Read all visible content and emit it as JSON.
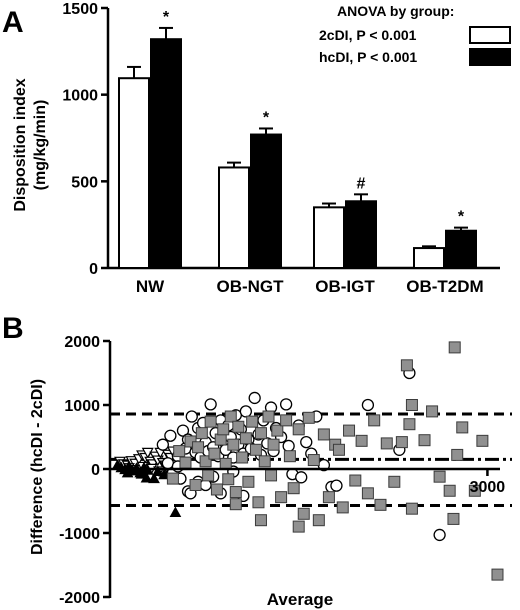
{
  "panels": [
    {
      "panel_label": "A",
      "chart_data": {
        "type": "bar",
        "ylabel_line1": "Disposition index",
        "ylabel_line2": "(mg/kg/min)",
        "xlabel": "",
        "ylim": [
          0,
          1500
        ],
        "yticks": [
          0,
          500,
          1000,
          1500
        ],
        "categories": [
          "NW",
          "OB-NGT",
          "OB-IGT",
          "OB-T2DM"
        ],
        "series": [
          {
            "name": "2cDI, P < 0.001",
            "color": "#ffffff",
            "values": [
              1095,
              580,
              350,
              115
            ],
            "errors": [
              65,
              28,
              22,
              10
            ]
          },
          {
            "name": "hcDI, P < 0.001",
            "color": "#000000",
            "values": [
              1320,
              770,
              385,
              215
            ],
            "errors": [
              65,
              35,
              40,
              18
            ]
          }
        ],
        "significance_marks": [
          "*",
          "*",
          "#",
          "*"
        ],
        "legend_title": "ANOVA by group:",
        "legend_position": "top-right",
        "grid": false
      }
    },
    {
      "panel_label": "B",
      "chart_data": {
        "type": "scatter",
        "title": "",
        "xlabel": "Average",
        "ylabel": "Difference (hcDI - 2cDI)",
        "xlim": [
          0,
          3100
        ],
        "ylim": [
          -2000,
          2000
        ],
        "xticks": [
          3000
        ],
        "yticks": [
          -2000,
          -1000,
          0,
          1000,
          2000
        ],
        "grid": false,
        "reference_lines": [
          {
            "y": 150,
            "style": "dash-dot"
          },
          {
            "y": 860,
            "style": "dashed"
          },
          {
            "y": -570,
            "style": "dashed"
          }
        ],
        "series": [
          {
            "marker": "triangle-down-open",
            "points": [
              [
                80,
                120
              ],
              [
                110,
                80
              ],
              [
                140,
                60
              ],
              [
                170,
                130
              ],
              [
                200,
                90
              ],
              [
                230,
                160
              ],
              [
                255,
                220
              ],
              [
                280,
                180
              ],
              [
                300,
                260
              ],
              [
                320,
                120
              ],
              [
                340,
                80
              ],
              [
                360,
                200
              ],
              [
                380,
                140
              ],
              [
                400,
                260
              ],
              [
                420,
                100
              ],
              [
                440,
                60
              ],
              [
                460,
                230
              ],
              [
                480,
                180
              ],
              [
                500,
                280
              ],
              [
                150,
                20
              ],
              [
                210,
                -10
              ],
              [
                260,
                40
              ],
              [
                330,
                10
              ],
              [
                390,
                -30
              ],
              [
                450,
                30
              ]
            ]
          },
          {
            "marker": "triangle-up-filled",
            "points": [
              [
                60,
                60
              ],
              [
                90,
                20
              ],
              [
                120,
                -10
              ],
              [
                150,
                40
              ],
              [
                180,
                -30
              ],
              [
                210,
                10
              ],
              [
                240,
                -60
              ],
              [
                270,
                20
              ],
              [
                300,
                -20
              ],
              [
                350,
                -150
              ],
              [
                380,
                -40
              ],
              [
                250,
                -80
              ],
              [
                140,
                -60
              ],
              [
                470,
                -50
              ],
              [
                520,
                -680
              ],
              [
                430,
                -90
              ],
              [
                290,
                -140
              ]
            ]
          },
          {
            "marker": "circle-open",
            "points": [
              [
                420,
                380
              ],
              [
                480,
                520
              ],
              [
                540,
                200
              ],
              [
                580,
                600
              ],
              [
                600,
                320
              ],
              [
                620,
                460
              ],
              [
                650,
                820
              ],
              [
                680,
                260
              ],
              [
                700,
                640
              ],
              [
                720,
                180
              ],
              [
                740,
                720
              ],
              [
                760,
                420
              ],
              [
                780,
                280
              ],
              [
                800,
                1010
              ],
              [
                820,
                340
              ],
              [
                840,
                560
              ],
              [
                860,
                200
              ],
              [
                880,
                760
              ],
              [
                900,
                440
              ],
              [
                920,
                300
              ],
              [
                940,
                680
              ],
              [
                960,
                500
              ],
              [
                980,
                180
              ],
              [
                1000,
                840
              ],
              [
                1020,
                380
              ],
              [
                1040,
                620
              ],
              [
                1060,
                240
              ],
              [
                1080,
                900
              ],
              [
                1100,
                460
              ],
              [
                1120,
                320
              ],
              [
                1150,
                1110
              ],
              [
                1180,
                540
              ],
              [
                1200,
                220
              ],
              [
                1220,
                760
              ],
              [
                1250,
                400
              ],
              [
                1280,
                960
              ],
              [
                1300,
                280
              ],
              [
                1320,
                640
              ],
              [
                1360,
                500
              ],
              [
                1400,
                1010
              ],
              [
                1420,
                360
              ],
              [
                1450,
                -80
              ],
              [
                1500,
                680
              ],
              [
                1520,
                -130
              ],
              [
                1560,
                420
              ],
              [
                1600,
                240
              ],
              [
                1640,
                820
              ],
              [
                1700,
                60
              ],
              [
                1760,
                -280
              ],
              [
                1800,
                -260
              ],
              [
                2050,
                1000
              ],
              [
                2300,
                300
              ],
              [
                2380,
                1500
              ],
              [
                2620,
                -1030
              ],
              [
                560,
                -150
              ],
              [
                620,
                -350
              ],
              [
                700,
                -200
              ],
              [
                760,
                -250
              ],
              [
                820,
                -120
              ],
              [
                500,
                -60
              ],
              [
                460,
                90
              ],
              [
                540,
                40
              ],
              [
                880,
                -380
              ],
              [
                980,
                -40
              ],
              [
                1060,
                -420
              ],
              [
                640,
                -380
              ]
            ]
          },
          {
            "marker": "square-gray",
            "points": [
              [
                500,
                -150
              ],
              [
                550,
                280
              ],
              [
                600,
                100
              ],
              [
                640,
                430
              ],
              [
                680,
                -250
              ],
              [
                700,
                340
              ],
              [
                730,
                560
              ],
              [
                760,
                120
              ],
              [
                780,
                -100
              ],
              [
                800,
                740
              ],
              [
                830,
                240
              ],
              [
                850,
                -320
              ],
              [
                880,
                460
              ],
              [
                900,
                620
              ],
              [
                920,
                80
              ],
              [
                940,
                -160
              ],
              [
                960,
                820
              ],
              [
                980,
                380
              ],
              [
                1000,
                -360
              ],
              [
                1020,
                660
              ],
              [
                1050,
                180
              ],
              [
                1080,
                480
              ],
              [
                1100,
                -200
              ],
              [
                1130,
                740
              ],
              [
                1160,
                300
              ],
              [
                1180,
                -520
              ],
              [
                1200,
                560
              ],
              [
                1230,
                120
              ],
              [
                1260,
                820
              ],
              [
                1280,
                -100
              ],
              [
                1300,
                380
              ],
              [
                1330,
                600
              ],
              [
                1360,
                -440
              ],
              [
                1400,
                760
              ],
              [
                1430,
                200
              ],
              [
                1460,
                -300
              ],
              [
                1500,
                620
              ],
              [
                1540,
                -700
              ],
              [
                1580,
                800
              ],
              [
                1620,
                140
              ],
              [
                1660,
                -800
              ],
              [
                1700,
                540
              ],
              [
                1740,
                -440
              ],
              [
                1790,
                380
              ],
              [
                1820,
                300
              ],
              [
                1850,
                -600
              ],
              [
                1900,
                600
              ],
              [
                1950,
                -180
              ],
              [
                2000,
                440
              ],
              [
                2050,
                -380
              ],
              [
                2100,
                760
              ],
              [
                2150,
                -560
              ],
              [
                2200,
                400
              ],
              [
                2260,
                -200
              ],
              [
                2320,
                420
              ],
              [
                2380,
                700
              ],
              [
                2400,
                1000
              ],
              [
                2500,
                450
              ],
              [
                2560,
                900
              ],
              [
                2620,
                -120
              ],
              [
                2700,
                -340
              ],
              [
                2730,
                -780
              ],
              [
                2760,
                220
              ],
              [
                2800,
                650
              ],
              [
                2360,
                1620
              ],
              [
                2740,
                1900
              ],
              [
                2900,
                -340
              ],
              [
                2960,
                440
              ],
              [
                3080,
                -1650
              ],
              [
                1200,
                -800
              ],
              [
                1500,
                -900
              ],
              [
                1000,
                -550
              ],
              [
                2400,
                -620
              ]
            ]
          }
        ]
      }
    }
  ]
}
